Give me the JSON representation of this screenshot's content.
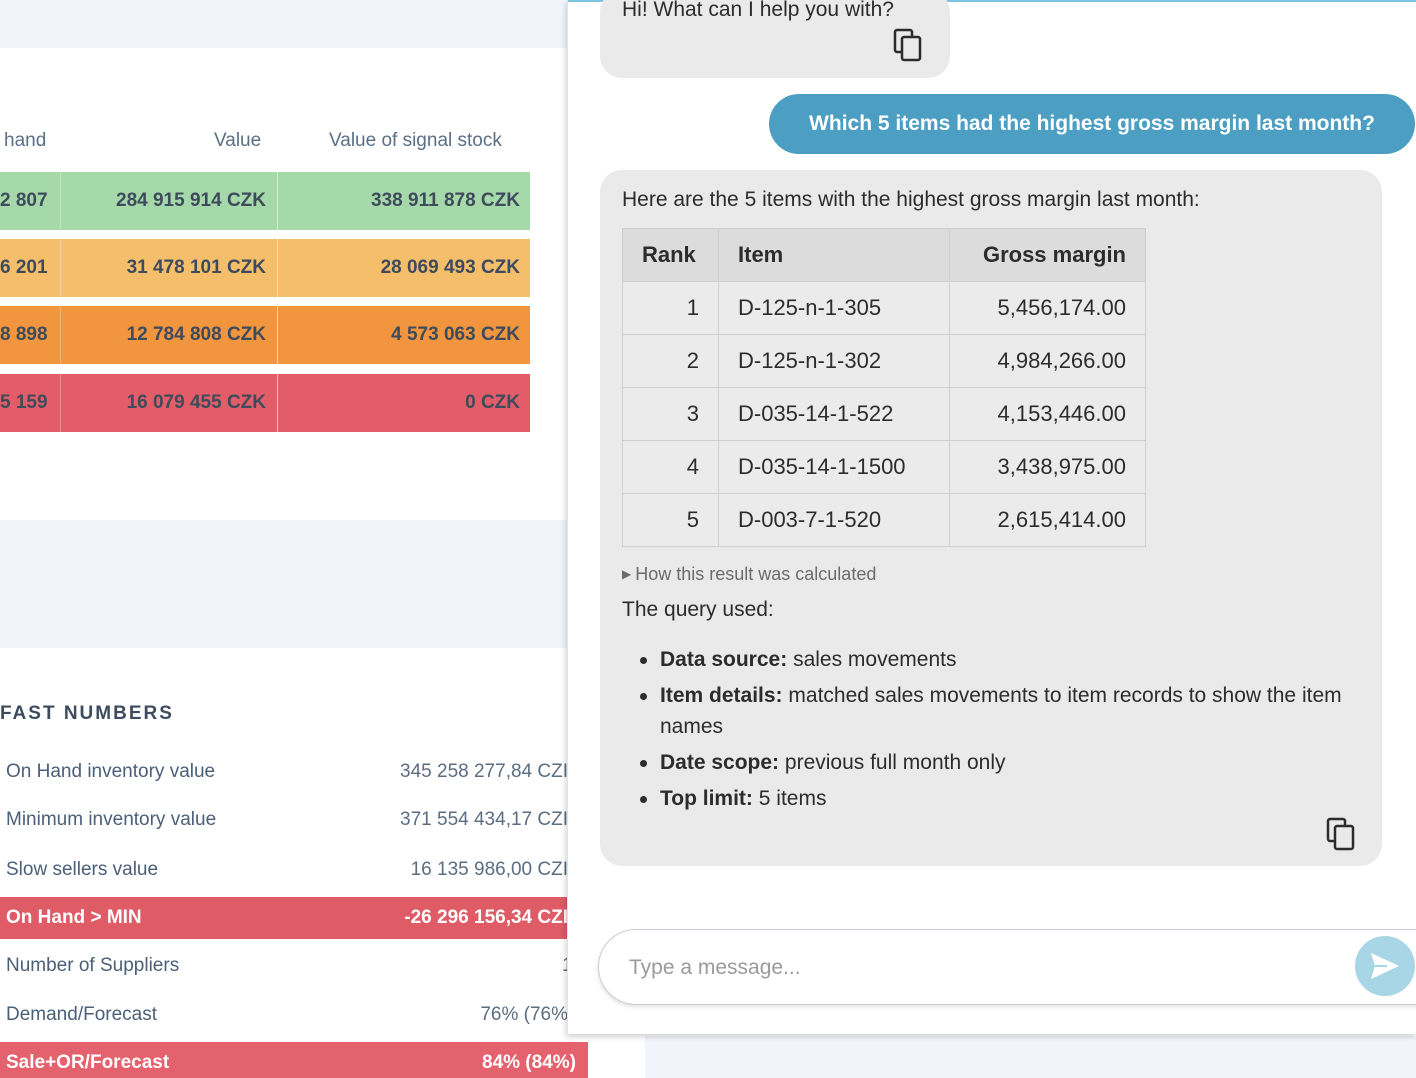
{
  "inventory_table": {
    "headers": [
      "hand",
      "Value",
      "Value of signal stock"
    ],
    "rows": [
      {
        "hand": "2 807",
        "value": "284 915 914 CZK",
        "signal": "338 911 878 CZK",
        "color": "#a6d9a9"
      },
      {
        "hand": "6 201",
        "value": "31 478 101 CZK",
        "signal": "28 069 493 CZK",
        "color": "#f5be6b"
      },
      {
        "hand": "8 898",
        "value": "12 784 808 CZK",
        "signal": "4 573 063 CZK",
        "color": "#f1963e"
      },
      {
        "hand": "5 159",
        "value": "16 079 455 CZK",
        "signal": "0 CZK",
        "color": "#e35d68"
      }
    ]
  },
  "fast_numbers": {
    "title": "FAST NUMBERS",
    "rows": [
      {
        "label": "On Hand inventory value",
        "value": "345 258 277,84 CZI"
      },
      {
        "label": "Minimum inventory value",
        "value": "371 554 434,17 CZI"
      },
      {
        "label": "Slow sellers value",
        "value": "16 135 986,00 CZI"
      },
      {
        "label": "On Hand > MIN",
        "value": "-26 296 156,34 CZI"
      },
      {
        "label": "Number of Suppliers",
        "value": "1"
      },
      {
        "label": "Demand/Forecast",
        "value": "76% (76%"
      },
      {
        "label": "Sale+OR/Forecast",
        "value": "84% (84%)"
      }
    ]
  },
  "chat": {
    "greeting": "Hi! What can I help you with?",
    "user_message": "Which 5 items had the highest gross margin last month?",
    "answer_intro": "Here are the 5 items with the highest gross margin last month:",
    "table": {
      "headers": [
        "Rank",
        "Item",
        "Gross margin"
      ],
      "rows": [
        {
          "rank": "1",
          "item": "D-125-n-1-305",
          "gm": "5,456,174.00"
        },
        {
          "rank": "2",
          "item": "D-125-n-1-302",
          "gm": "4,984,266.00"
        },
        {
          "rank": "3",
          "item": "D-035-14-1-522",
          "gm": "4,153,446.00"
        },
        {
          "rank": "4",
          "item": "D-035-14-1-1500",
          "gm": "3,438,975.00"
        },
        {
          "rank": "5",
          "item": "D-003-7-1-520",
          "gm": "2,615,414.00"
        }
      ]
    },
    "calc_toggle": "How this result was calculated",
    "query_used": "The query used:",
    "query_items": [
      {
        "term": "Data source:",
        "text": "sales movements"
      },
      {
        "term": "Item details:",
        "text": "matched sales movements to item records to show the item names"
      },
      {
        "term": "Date scope:",
        "text": "previous full month only"
      },
      {
        "term": "Top limit:",
        "text": "5 items"
      }
    ],
    "input_placeholder": "Type a message...",
    "icons": {
      "copy": "copy-icon",
      "send": "send-icon"
    },
    "colors": {
      "user_bubble": "#4c9fc2",
      "bot_bubble": "#eaeaea",
      "send_button": "#a9d6e6"
    }
  }
}
